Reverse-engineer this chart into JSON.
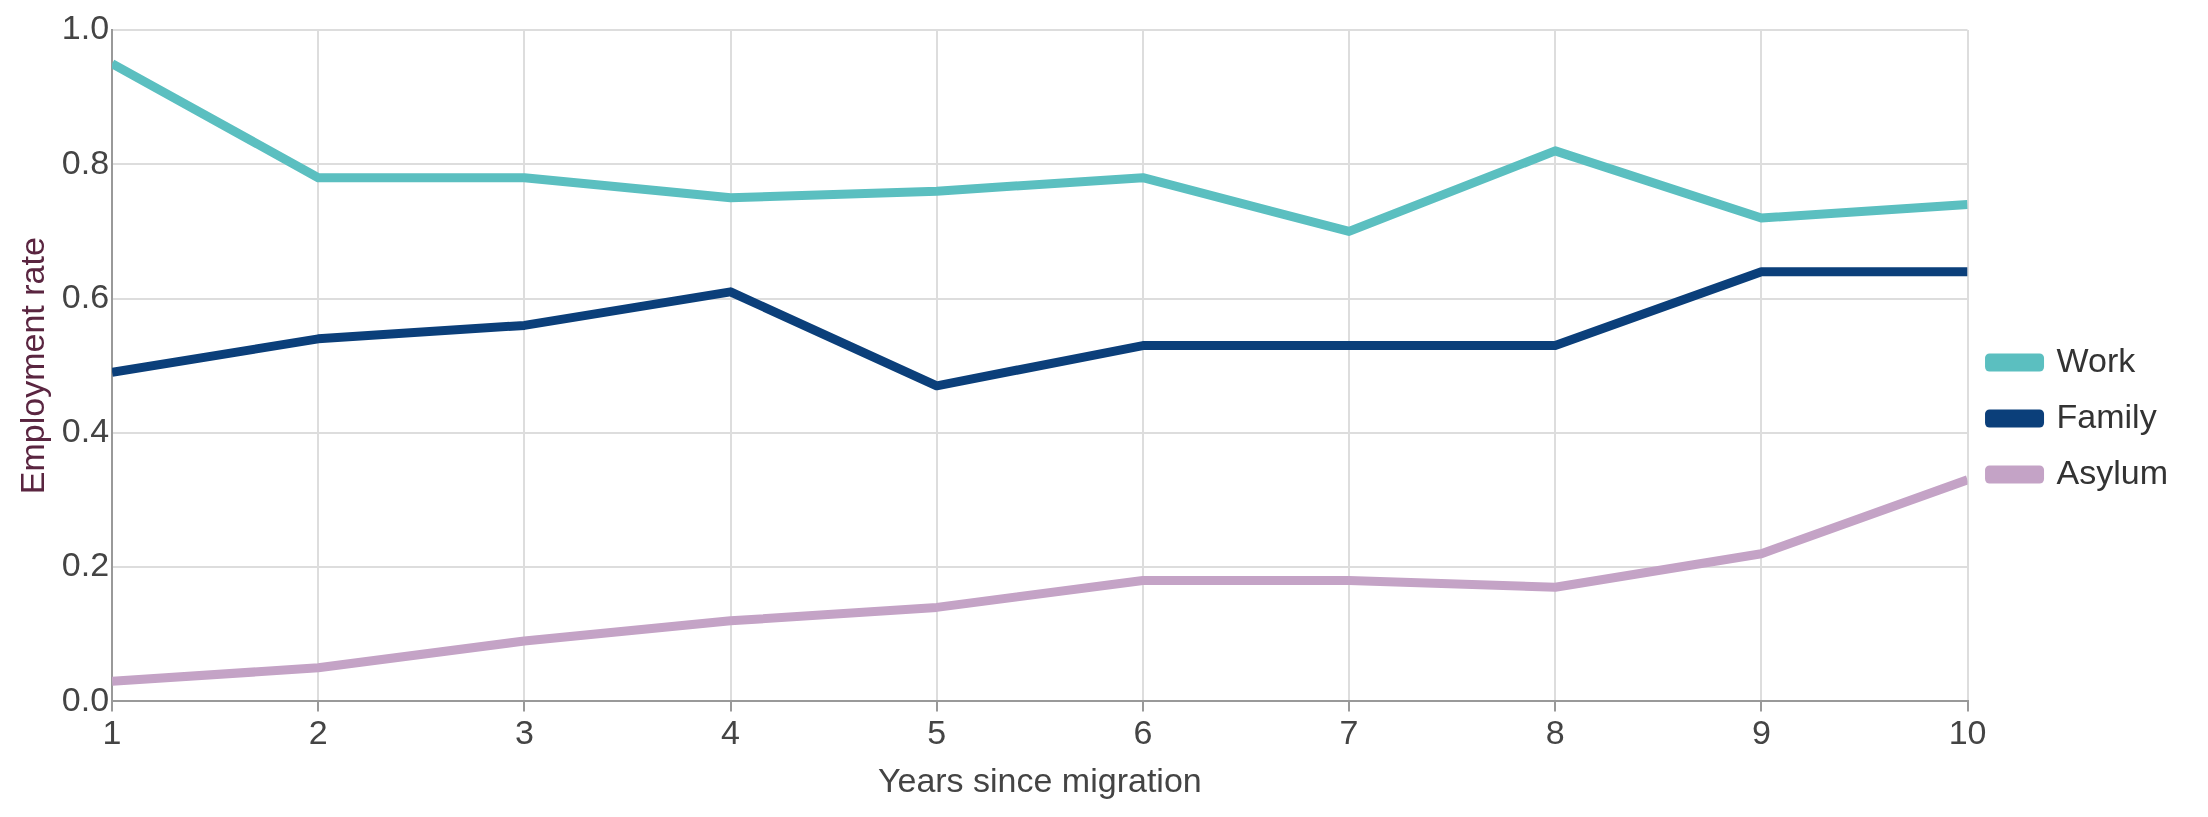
{
  "chart_data": {
    "type": "line",
    "xlabel": "Years since migration",
    "ylabel": "Employment rate",
    "x": [
      1,
      2,
      3,
      4,
      5,
      6,
      7,
      8,
      9,
      10
    ],
    "series": [
      {
        "name": "Work",
        "color": "#5bbfc0",
        "values": [
          0.95,
          0.78,
          0.78,
          0.75,
          0.76,
          0.78,
          0.7,
          0.82,
          0.72,
          0.74
        ]
      },
      {
        "name": "Family",
        "color": "#0b3f7a",
        "values": [
          0.49,
          0.54,
          0.56,
          0.61,
          0.47,
          0.53,
          0.53,
          0.53,
          0.64,
          0.64
        ]
      },
      {
        "name": "Asylum",
        "color": "#c4a3c6",
        "values": [
          0.03,
          0.05,
          0.09,
          0.12,
          0.14,
          0.18,
          0.18,
          0.17,
          0.22,
          0.33
        ]
      }
    ],
    "xlim": [
      1,
      10
    ],
    "xticks": [
      1,
      2,
      3,
      4,
      5,
      6,
      7,
      8,
      9,
      10
    ],
    "ylim": [
      0,
      1
    ],
    "yticks": [
      {
        "value": 0,
        "label": "0.0"
      },
      {
        "value": 0.2,
        "label": "0.2"
      },
      {
        "value": 0.4,
        "label": "0.4"
      },
      {
        "value": 0.6,
        "label": "0.6"
      },
      {
        "value": 0.8,
        "label": "0.8"
      },
      {
        "value": 1,
        "label": "1.0"
      }
    ],
    "grid": true,
    "legend": "right",
    "marker": "none",
    "line_style": "solid"
  }
}
